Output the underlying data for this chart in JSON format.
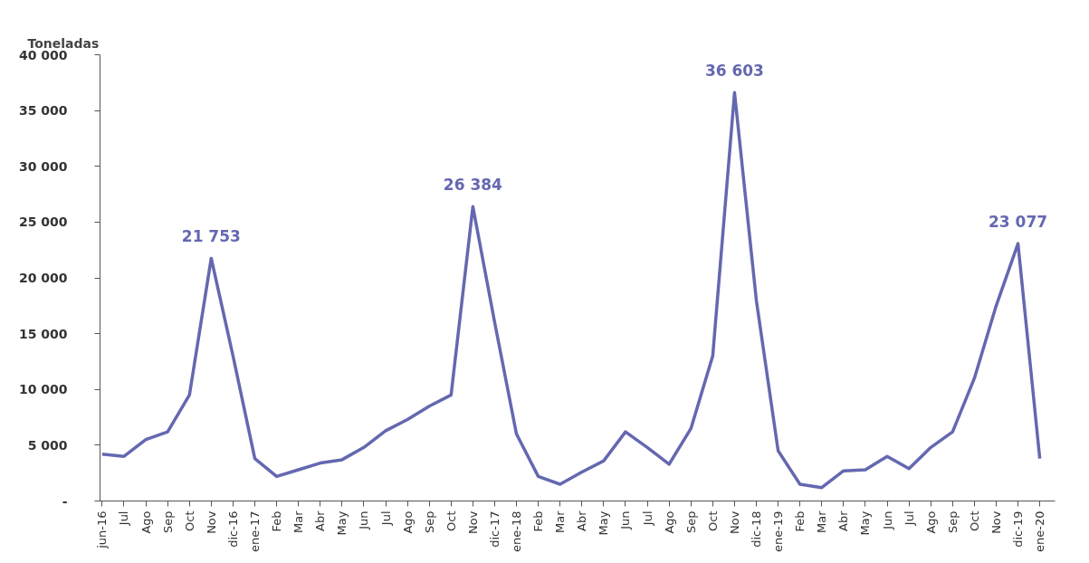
{
  "chart_data": {
    "type": "line",
    "ylabel": "Toneladas",
    "categories": [
      "jun-16",
      "Jul",
      "Ago",
      "Sep",
      "Oct",
      "Nov",
      "dic-16",
      "ene-17",
      "Feb",
      "Mar",
      "Abr",
      "May",
      "Jun",
      "Jul",
      "Ago",
      "Sep",
      "Oct",
      "Nov",
      "dic-17",
      "ene-18",
      "Feb",
      "Mar",
      "Abr",
      "May",
      "Jun",
      "Jul",
      "Ago",
      "Sep",
      "Oct",
      "Nov",
      "dic-18",
      "ene-19",
      "Feb",
      "Mar",
      "Abr",
      "May",
      "Jun",
      "Jul",
      "Ago",
      "Sep",
      "Oct",
      "Nov",
      "dic-19",
      "ene-20"
    ],
    "series": [
      {
        "color": "#6468b0",
        "values": [
          4200,
          4000,
          5500,
          6200,
          9500,
          21753,
          13000,
          3800,
          2200,
          2800,
          3400,
          3700,
          4800,
          6300,
          7300,
          8500,
          9500,
          26384,
          16000,
          6000,
          2200,
          1500,
          2600,
          3600,
          6200,
          4800,
          3300,
          6500,
          13000,
          36603,
          18000,
          4500,
          1500,
          1200,
          2700,
          2800,
          4000,
          2900,
          4800,
          6200,
          11000,
          17500,
          23077,
          3800
        ],
        "value_labels": [
          null,
          null,
          null,
          null,
          null,
          "21 753",
          null,
          null,
          null,
          null,
          null,
          null,
          null,
          null,
          null,
          null,
          null,
          "26 384",
          null,
          null,
          null,
          null,
          null,
          null,
          null,
          null,
          null,
          null,
          null,
          "36 603",
          null,
          null,
          null,
          null,
          null,
          null,
          null,
          null,
          null,
          null,
          null,
          null,
          "23 077",
          null
        ]
      }
    ],
    "ylim": [
      0,
      40000
    ],
    "yticks": [
      {
        "value": 0,
        "label": "-"
      },
      {
        "value": 5000,
        "label": "5 000"
      },
      {
        "value": 10000,
        "label": "10 000"
      },
      {
        "value": 15000,
        "label": "15 000"
      },
      {
        "value": 20000,
        "label": "20 000"
      },
      {
        "value": 25000,
        "label": "25 000"
      },
      {
        "value": 30000,
        "label": "30 000"
      },
      {
        "value": 35000,
        "label": "35 000"
      },
      {
        "value": 40000,
        "label": "40 000"
      }
    ],
    "grid": false,
    "marker": "none",
    "line_style": "solid"
  }
}
